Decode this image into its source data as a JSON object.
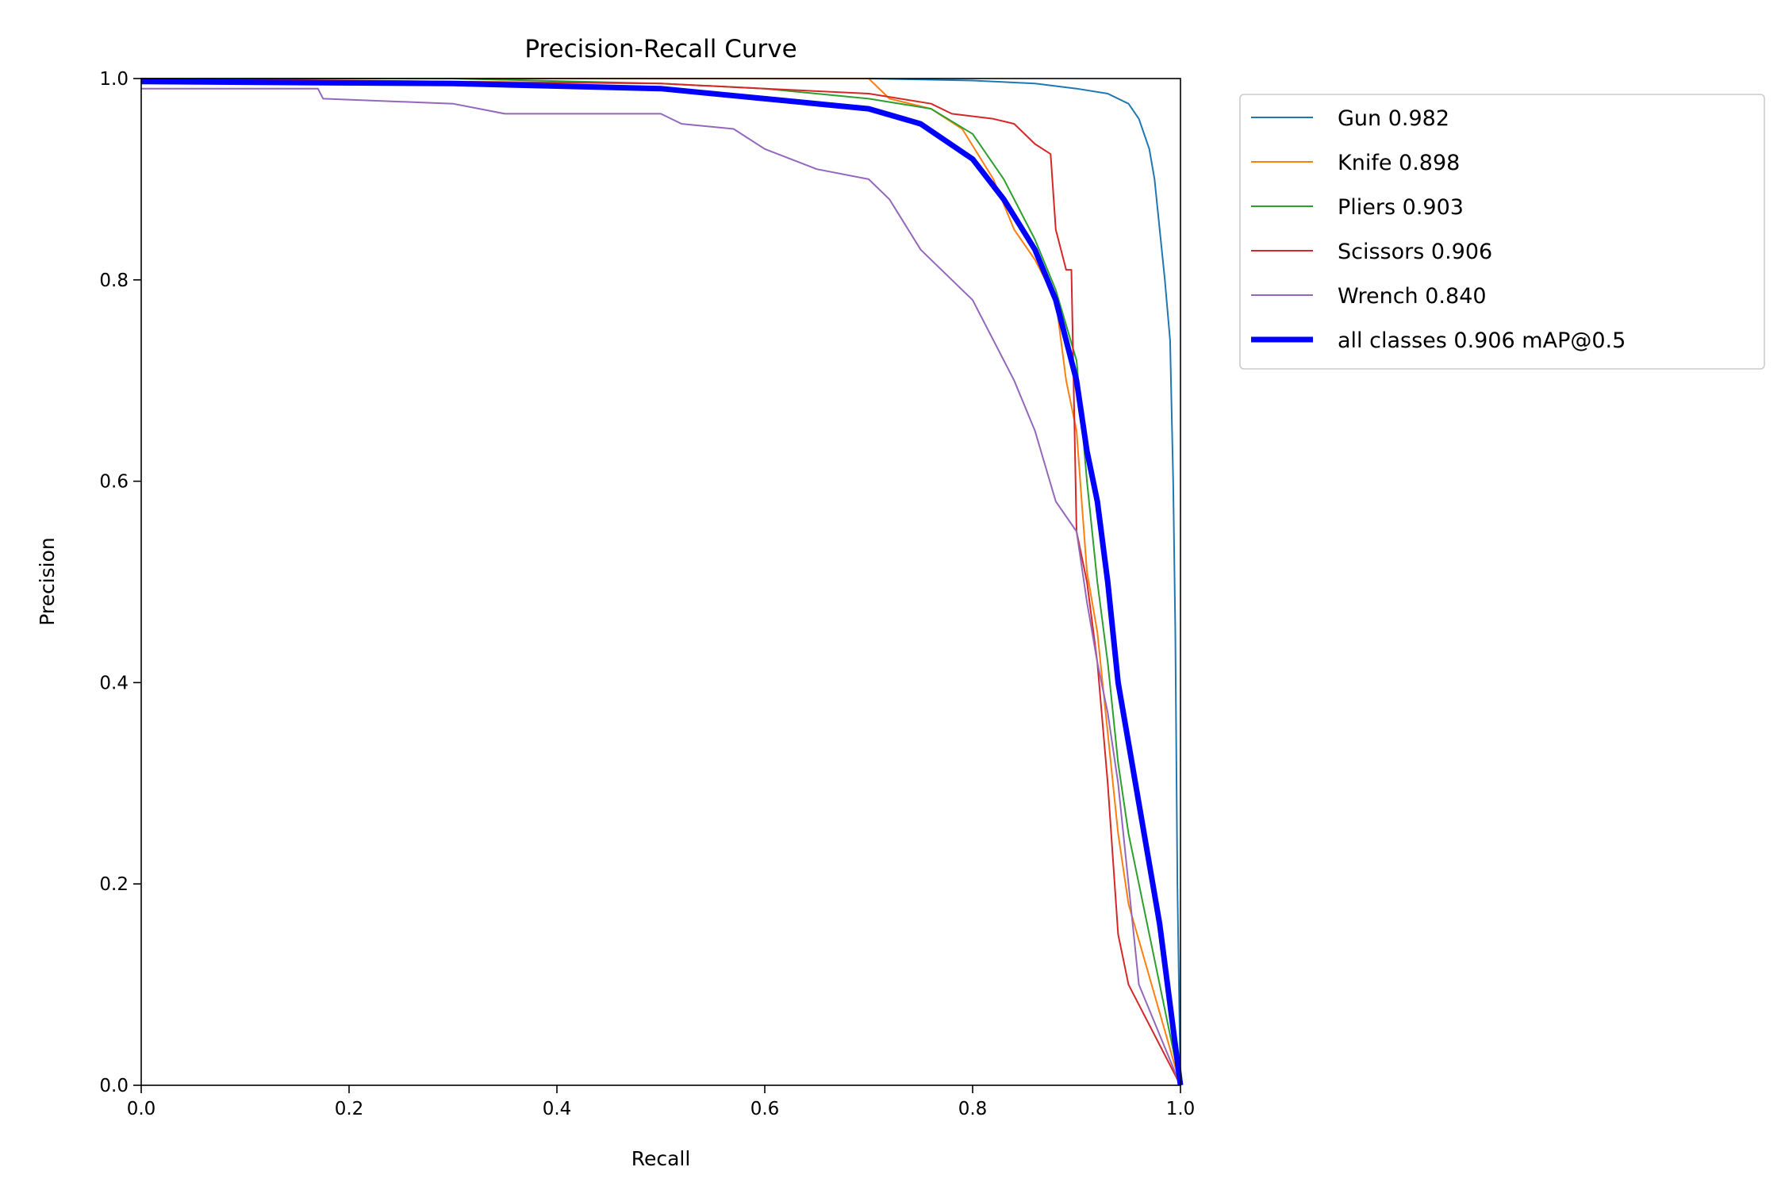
{
  "chart_data": {
    "type": "line",
    "title": "Precision-Recall Curve",
    "xlabel": "Recall",
    "ylabel": "Precision",
    "xlim": [
      0,
      1
    ],
    "ylim": [
      0,
      1
    ],
    "xticks": [
      "0.0",
      "0.2",
      "0.4",
      "0.6",
      "0.8",
      "1.0"
    ],
    "yticks": [
      "0.0",
      "0.2",
      "0.4",
      "0.6",
      "0.8",
      "1.0"
    ],
    "grid": false,
    "legend_placement": "outside-top-right",
    "series": [
      {
        "name": "Gun 0.982",
        "color": "#1f77b4",
        "width": "thin",
        "points": [
          [
            0,
            1
          ],
          [
            0.5,
            1
          ],
          [
            0.7,
            1
          ],
          [
            0.8,
            0.998
          ],
          [
            0.86,
            0.995
          ],
          [
            0.9,
            0.99
          ],
          [
            0.93,
            0.985
          ],
          [
            0.95,
            0.975
          ],
          [
            0.96,
            0.96
          ],
          [
            0.97,
            0.93
          ],
          [
            0.975,
            0.9
          ],
          [
            0.98,
            0.85
          ],
          [
            0.985,
            0.8
          ],
          [
            0.99,
            0.74
          ],
          [
            0.993,
            0.6
          ],
          [
            0.995,
            0.45
          ],
          [
            0.997,
            0.2
          ],
          [
            1.0,
            0.0
          ]
        ]
      },
      {
        "name": "Knife 0.898",
        "color": "#ff7f0e",
        "width": "thin",
        "points": [
          [
            0,
            1
          ],
          [
            0.5,
            1
          ],
          [
            0.7,
            1
          ],
          [
            0.72,
            0.98
          ],
          [
            0.76,
            0.97
          ],
          [
            0.79,
            0.95
          ],
          [
            0.82,
            0.9
          ],
          [
            0.84,
            0.85
          ],
          [
            0.86,
            0.82
          ],
          [
            0.88,
            0.78
          ],
          [
            0.89,
            0.7
          ],
          [
            0.9,
            0.65
          ],
          [
            0.905,
            0.58
          ],
          [
            0.91,
            0.51
          ],
          [
            0.92,
            0.45
          ],
          [
            0.93,
            0.35
          ],
          [
            0.94,
            0.25
          ],
          [
            0.95,
            0.18
          ],
          [
            1.0,
            0.0
          ]
        ]
      },
      {
        "name": "Pliers 0.903",
        "color": "#2ca02c",
        "width": "thin",
        "points": [
          [
            0,
            1
          ],
          [
            0.3,
            1
          ],
          [
            0.5,
            0.995
          ],
          [
            0.6,
            0.99
          ],
          [
            0.7,
            0.98
          ],
          [
            0.76,
            0.97
          ],
          [
            0.8,
            0.945
          ],
          [
            0.83,
            0.9
          ],
          [
            0.86,
            0.84
          ],
          [
            0.88,
            0.79
          ],
          [
            0.9,
            0.72
          ],
          [
            0.91,
            0.6
          ],
          [
            0.92,
            0.5
          ],
          [
            0.93,
            0.42
          ],
          [
            0.94,
            0.32
          ],
          [
            0.95,
            0.25
          ],
          [
            0.96,
            0.2
          ],
          [
            0.97,
            0.15
          ],
          [
            1.0,
            0.0
          ]
        ]
      },
      {
        "name": "Scissors 0.906",
        "color": "#d62728",
        "width": "thin",
        "points": [
          [
            0,
            1
          ],
          [
            0.5,
            0.995
          ],
          [
            0.6,
            0.99
          ],
          [
            0.7,
            0.985
          ],
          [
            0.76,
            0.975
          ],
          [
            0.78,
            0.965
          ],
          [
            0.82,
            0.96
          ],
          [
            0.84,
            0.955
          ],
          [
            0.86,
            0.935
          ],
          [
            0.875,
            0.925
          ],
          [
            0.88,
            0.85
          ],
          [
            0.89,
            0.81
          ],
          [
            0.895,
            0.81
          ],
          [
            0.9,
            0.55
          ],
          [
            0.91,
            0.5
          ],
          [
            0.92,
            0.42
          ],
          [
            0.93,
            0.3
          ],
          [
            0.94,
            0.15
          ],
          [
            0.95,
            0.1
          ],
          [
            1.0,
            0.0
          ]
        ]
      },
      {
        "name": "Wrench 0.840",
        "color": "#9467bd",
        "width": "thin",
        "points": [
          [
            0,
            0.99
          ],
          [
            0.17,
            0.99
          ],
          [
            0.175,
            0.98
          ],
          [
            0.3,
            0.975
          ],
          [
            0.35,
            0.965
          ],
          [
            0.5,
            0.965
          ],
          [
            0.52,
            0.955
          ],
          [
            0.57,
            0.95
          ],
          [
            0.6,
            0.93
          ],
          [
            0.65,
            0.91
          ],
          [
            0.7,
            0.9
          ],
          [
            0.72,
            0.88
          ],
          [
            0.75,
            0.83
          ],
          [
            0.78,
            0.8
          ],
          [
            0.8,
            0.78
          ],
          [
            0.82,
            0.74
          ],
          [
            0.84,
            0.7
          ],
          [
            0.86,
            0.65
          ],
          [
            0.88,
            0.58
          ],
          [
            0.9,
            0.55
          ],
          [
            0.91,
            0.48
          ],
          [
            0.92,
            0.42
          ],
          [
            0.93,
            0.37
          ],
          [
            0.94,
            0.3
          ],
          [
            0.95,
            0.2
          ],
          [
            0.96,
            0.1
          ],
          [
            1.0,
            0.0
          ]
        ]
      },
      {
        "name": "all classes 0.906 mAP@0.5",
        "color": "#0000ff",
        "width": "thick",
        "points": [
          [
            0,
            0.997
          ],
          [
            0.3,
            0.995
          ],
          [
            0.5,
            0.99
          ],
          [
            0.6,
            0.98
          ],
          [
            0.7,
            0.97
          ],
          [
            0.75,
            0.955
          ],
          [
            0.8,
            0.92
          ],
          [
            0.83,
            0.88
          ],
          [
            0.86,
            0.83
          ],
          [
            0.88,
            0.78
          ],
          [
            0.9,
            0.7
          ],
          [
            0.91,
            0.63
          ],
          [
            0.92,
            0.58
          ],
          [
            0.93,
            0.5
          ],
          [
            0.94,
            0.4
          ],
          [
            0.95,
            0.34
          ],
          [
            0.96,
            0.28
          ],
          [
            0.97,
            0.22
          ],
          [
            0.98,
            0.16
          ],
          [
            1.0,
            0.0
          ]
        ]
      }
    ]
  }
}
